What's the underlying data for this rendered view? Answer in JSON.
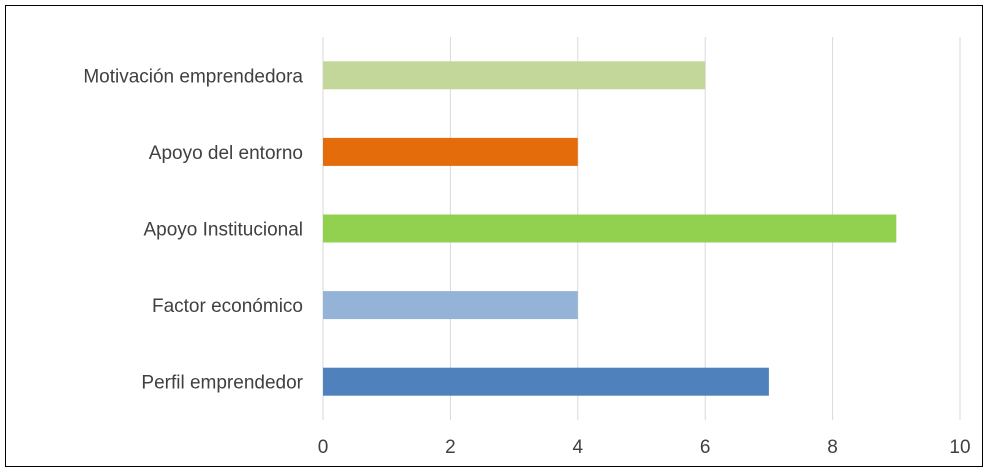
{
  "chart_data": {
    "type": "bar",
    "orientation": "horizontal",
    "title": "",
    "xlabel": "",
    "ylabel": "",
    "categories": [
      "Motivación emprendedora",
      "Apoyo del entorno",
      "Apoyo Institucional",
      "Factor económico",
      "Perfil emprendedor"
    ],
    "values": [
      6,
      4,
      9,
      4,
      7
    ],
    "colors": [
      "#c4d79b",
      "#e46c0a",
      "#92d050",
      "#95b3d7",
      "#4f81bd"
    ],
    "xlim": [
      0,
      10
    ],
    "x_ticks": [
      "0",
      "2",
      "4",
      "6",
      "8",
      "10"
    ],
    "grid": true,
    "gridline_color": "#d9d9d9",
    "legend": "none"
  }
}
